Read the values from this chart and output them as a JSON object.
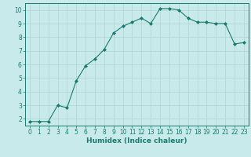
{
  "x": [
    0,
    1,
    2,
    3,
    4,
    5,
    6,
    7,
    8,
    9,
    10,
    11,
    12,
    13,
    14,
    15,
    16,
    17,
    18,
    19,
    20,
    21,
    22,
    23
  ],
  "y": [
    1.8,
    1.8,
    1.8,
    3.0,
    2.8,
    4.8,
    5.9,
    6.4,
    7.1,
    8.3,
    8.8,
    9.1,
    9.4,
    9.0,
    10.1,
    10.1,
    10.0,
    9.4,
    9.1,
    9.1,
    9.0,
    9.0,
    7.5,
    7.6
  ],
  "line_color": "#1a7a6e",
  "marker": "D",
  "marker_size": 2.0,
  "bg_color": "#c8eaea",
  "grid_color": "#aed4d4",
  "xlabel": "Humidex (Indice chaleur)",
  "xlim": [
    -0.5,
    23.5
  ],
  "ylim": [
    1.5,
    10.5
  ],
  "yticks": [
    2,
    3,
    4,
    5,
    6,
    7,
    8,
    9,
    10
  ],
  "xticks": [
    0,
    1,
    2,
    3,
    4,
    5,
    6,
    7,
    8,
    9,
    10,
    11,
    12,
    13,
    14,
    15,
    16,
    17,
    18,
    19,
    20,
    21,
    22,
    23
  ],
  "label_fontsize": 6.5,
  "tick_fontsize": 5.5
}
